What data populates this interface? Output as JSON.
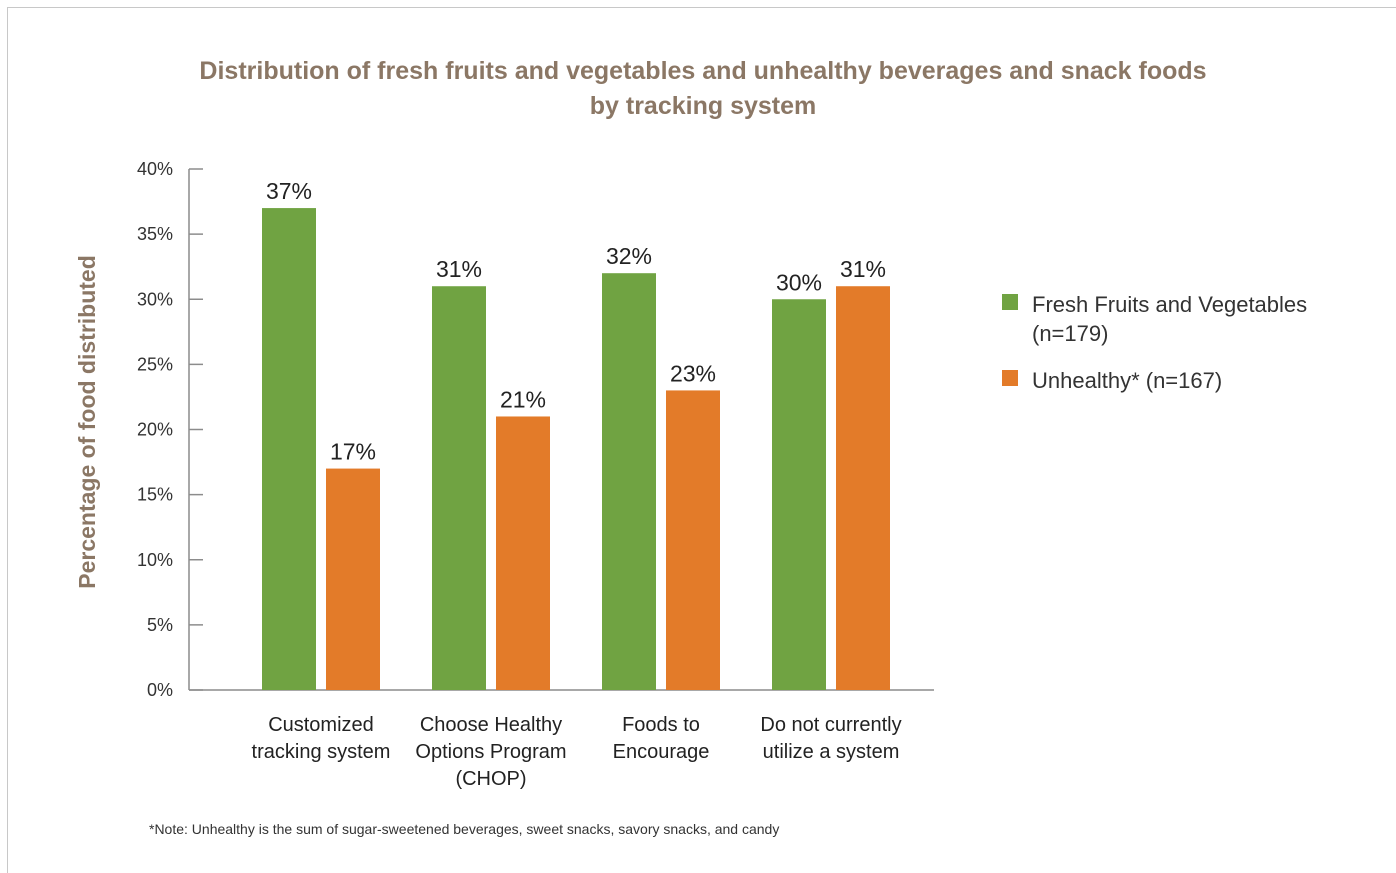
{
  "chart_data": {
    "type": "bar",
    "title_lines": [
      "Distribution of fresh fruits and vegetables and unhealthy beverages and snack foods",
      "by tracking system"
    ],
    "ylabel": "Percentage of food distributed",
    "xlabel": "",
    "ylim": [
      0,
      40
    ],
    "yticks": [
      0,
      5,
      10,
      15,
      20,
      25,
      30,
      35,
      40
    ],
    "ytick_labels": [
      "0%",
      "5%",
      "10%",
      "15%",
      "20%",
      "25%",
      "30%",
      "35%",
      "40%"
    ],
    "categories": [
      [
        "Customized",
        "tracking system"
      ],
      [
        "Choose Healthy",
        "Options Program",
        "(CHOP)"
      ],
      [
        "Foods to",
        "Encourage"
      ],
      [
        "Do not currently",
        "utilize a system"
      ]
    ],
    "series": [
      {
        "name": "Fresh Fruits and Vegetables (n=179)",
        "legend_lines": [
          "Fresh Fruits and Vegetables",
          "(n=179)"
        ],
        "color": "#70a342",
        "values": [
          37,
          31,
          32,
          30
        ],
        "labels": [
          "37%",
          "31%",
          "32%",
          "30%"
        ]
      },
      {
        "name": "Unhealthy* (n=167)",
        "legend_lines": [
          "Unhealthy* (n=167)"
        ],
        "color": "#e37b29",
        "values": [
          17,
          21,
          23,
          31
        ],
        "labels": [
          "17%",
          "21%",
          "23%",
          "31%"
        ]
      }
    ],
    "legend_position": "right",
    "grid": false,
    "note": "*Note: Unhealthy is the sum of sugar-sweetened beverages, sweet snacks, savory snacks, and candy"
  },
  "colors": {
    "title": "#8b7765",
    "axis": "#8c8c8c",
    "text": "#222222"
  }
}
